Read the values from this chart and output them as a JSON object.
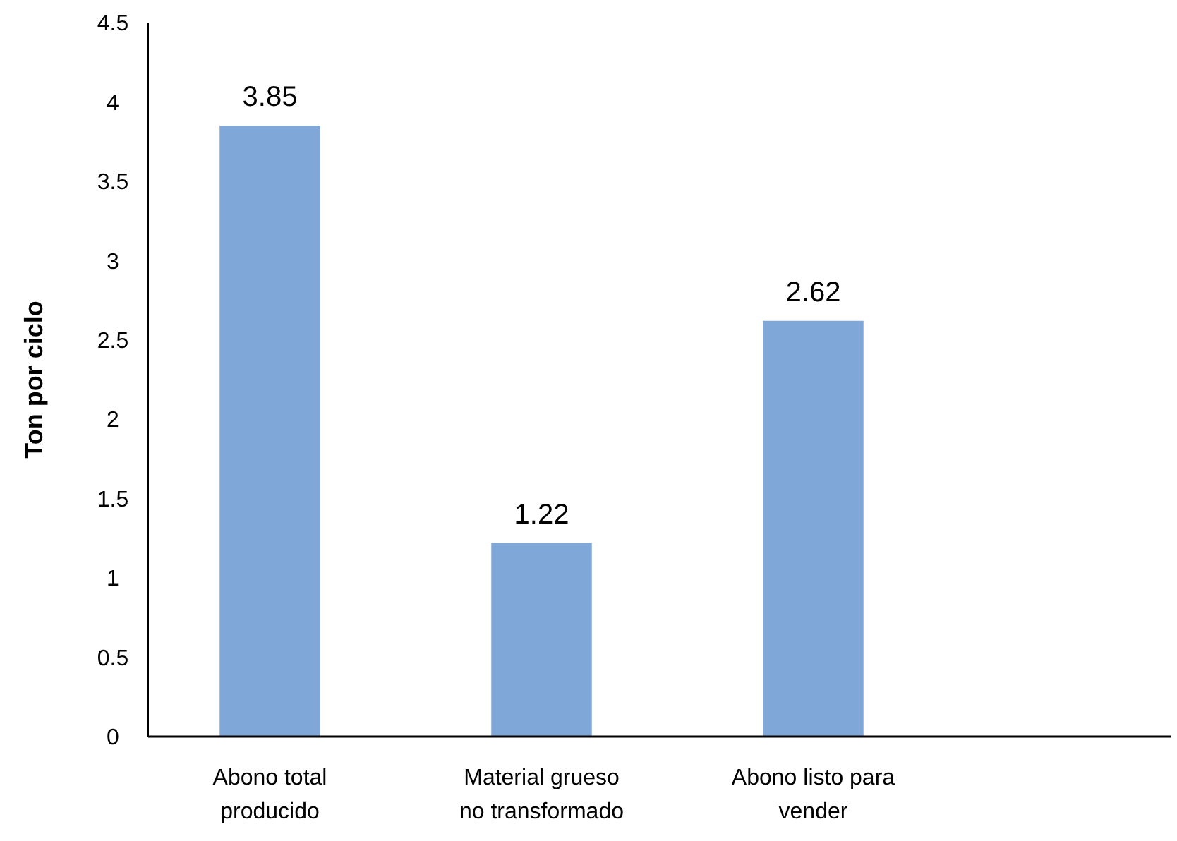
{
  "chart_data": {
    "type": "bar",
    "ylabel": "Ton por ciclo",
    "categories": [
      "Abono total producido",
      "Material grueso no transformado",
      "Abono listo para vender",
      null
    ],
    "values": [
      3.85,
      1.22,
      2.62,
      null
    ],
    "color": "#7fa7d8",
    "ylim": [
      0,
      4.5
    ],
    "yticks": [
      0,
      0.5,
      1,
      1.5,
      2,
      2.5,
      3,
      3.5,
      4,
      4.5
    ],
    "grid": false,
    "data_labels": true
  }
}
